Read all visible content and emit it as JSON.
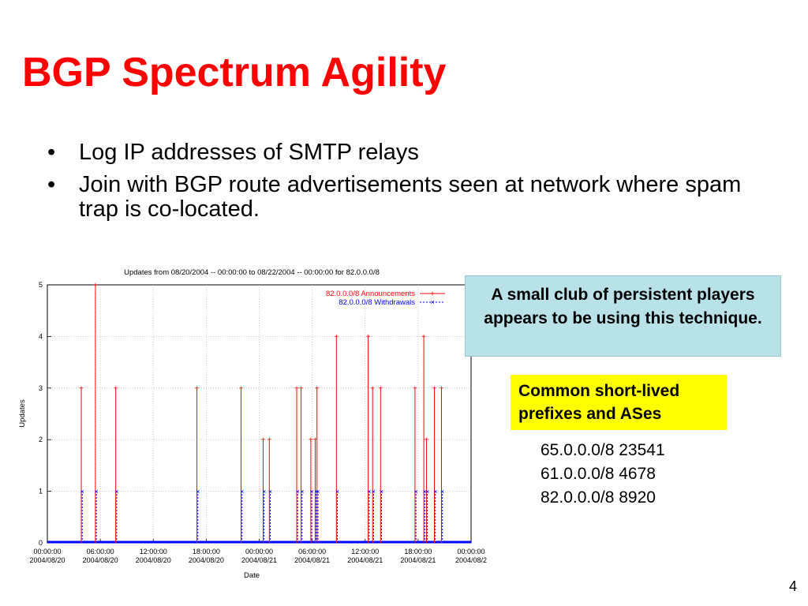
{
  "slide": {
    "title": "BGP Spectrum Agility",
    "bullets": [
      "Log IP addresses of SMTP relays",
      "Join with BGP route advertisements seen at network where spam trap is co-located."
    ],
    "bullet_glyph": "•",
    "callout_blue": "A small club of persistent players appears to be using this technique.",
    "callout_yellow": "Common short-lived prefixes and ASes",
    "prefix_list": [
      "65.0.0.0/8 23541",
      "61.0.0.0/8 4678",
      "82.0.0.0/8 8920"
    ],
    "page_number": "4"
  },
  "chart_data": {
    "type": "line",
    "title": "Updates from 08/20/2004 -- 00:00:00 to 08/22/2004 -- 00:00:00 for 82.0.0.0/8",
    "xlabel": "Date",
    "ylabel": "Updates",
    "ylim": [
      0,
      5
    ],
    "xlim": [
      "2004-08-20 00:00",
      "2004-08-22 00:00"
    ],
    "yticks": [
      "0",
      "1",
      "2",
      "3",
      "4",
      "5"
    ],
    "xticks": [
      {
        "time": "00:00:00",
        "date": "2004/08/20",
        "at": "2004-08-20 00:00"
      },
      {
        "time": "06:00:00",
        "date": "2004/08/20",
        "at": "2004-08-20 06:00"
      },
      {
        "time": "12:00:00",
        "date": "2004/08/20",
        "at": "2004-08-20 12:00"
      },
      {
        "time": "18:00:00",
        "date": "2004/08/20",
        "at": "2004-08-20 18:00"
      },
      {
        "time": "00:00:00",
        "date": "2004/08/21",
        "at": "2004-08-21 00:00"
      },
      {
        "time": "06:00:00",
        "date": "2004/08/21",
        "at": "2004-08-21 06:00"
      },
      {
        "time": "12:00:00",
        "date": "2004/08/21",
        "at": "2004-08-21 12:00"
      },
      {
        "time": "18:00:00",
        "date": "2004/08/21",
        "at": "2004-08-21 18:00"
      },
      {
        "time": "00:00:00",
        "date": "2004/08/2",
        "at": "2004-08-22 00:00"
      }
    ],
    "grid": true,
    "legend_position": "top-right",
    "series": [
      {
        "name": "82.0.0.0/8 Announcements",
        "color": "#ff0000",
        "marker": "plus",
        "spikes": [
          {
            "t": "2004-08-20 03:54",
            "y": 3
          },
          {
            "t": "2004-08-20 05:30",
            "y": 5
          },
          {
            "t": "2004-08-20 07:48",
            "y": 3
          },
          {
            "t": "2004-08-20 17:00",
            "y": 3
          },
          {
            "t": "2004-08-20 22:00",
            "y": 3
          },
          {
            "t": "2004-08-21 00:30",
            "y": 2
          },
          {
            "t": "2004-08-21 01:12",
            "y": 2
          },
          {
            "t": "2004-08-21 04:18",
            "y": 3
          },
          {
            "t": "2004-08-21 04:48",
            "y": 3
          },
          {
            "t": "2004-08-21 05:54",
            "y": 2
          },
          {
            "t": "2004-08-21 06:24",
            "y": 2
          },
          {
            "t": "2004-08-21 06:36",
            "y": 3
          },
          {
            "t": "2004-08-21 08:48",
            "y": 4
          },
          {
            "t": "2004-08-21 12:24",
            "y": 4
          },
          {
            "t": "2004-08-21 12:54",
            "y": 3
          },
          {
            "t": "2004-08-21 13:48",
            "y": 3
          },
          {
            "t": "2004-08-21 17:42",
            "y": 3
          },
          {
            "t": "2004-08-21 18:42",
            "y": 4
          },
          {
            "t": "2004-08-21 19:00",
            "y": 2
          },
          {
            "t": "2004-08-21 19:54",
            "y": 3
          },
          {
            "t": "2004-08-21 20:42",
            "y": 3
          }
        ]
      },
      {
        "name": "82.0.0.0/8 Withdrawals",
        "color": "#0000ff",
        "marker": "cross",
        "spikes": [
          {
            "t": "2004-08-20 03:54",
            "y": 1
          },
          {
            "t": "2004-08-20 05:30",
            "y": 1
          },
          {
            "t": "2004-08-20 07:48",
            "y": 1
          },
          {
            "t": "2004-08-20 17:00",
            "y": 1
          },
          {
            "t": "2004-08-20 22:00",
            "y": 1
          },
          {
            "t": "2004-08-21 00:30",
            "y": 1
          },
          {
            "t": "2004-08-21 01:12",
            "y": 1
          },
          {
            "t": "2004-08-21 04:18",
            "y": 1
          },
          {
            "t": "2004-08-21 04:48",
            "y": 1
          },
          {
            "t": "2004-08-21 05:54",
            "y": 1
          },
          {
            "t": "2004-08-21 06:24",
            "y": 1
          },
          {
            "t": "2004-08-21 06:36",
            "y": 1
          },
          {
            "t": "2004-08-21 08:48",
            "y": 1
          },
          {
            "t": "2004-08-21 12:24",
            "y": 1
          },
          {
            "t": "2004-08-21 12:54",
            "y": 1
          },
          {
            "t": "2004-08-21 13:48",
            "y": 1
          },
          {
            "t": "2004-08-21 17:42",
            "y": 1
          },
          {
            "t": "2004-08-21 18:42",
            "y": 1
          },
          {
            "t": "2004-08-21 19:00",
            "y": 1
          },
          {
            "t": "2004-08-21 19:54",
            "y": 1
          },
          {
            "t": "2004-08-21 20:42",
            "y": 1
          }
        ]
      }
    ]
  }
}
